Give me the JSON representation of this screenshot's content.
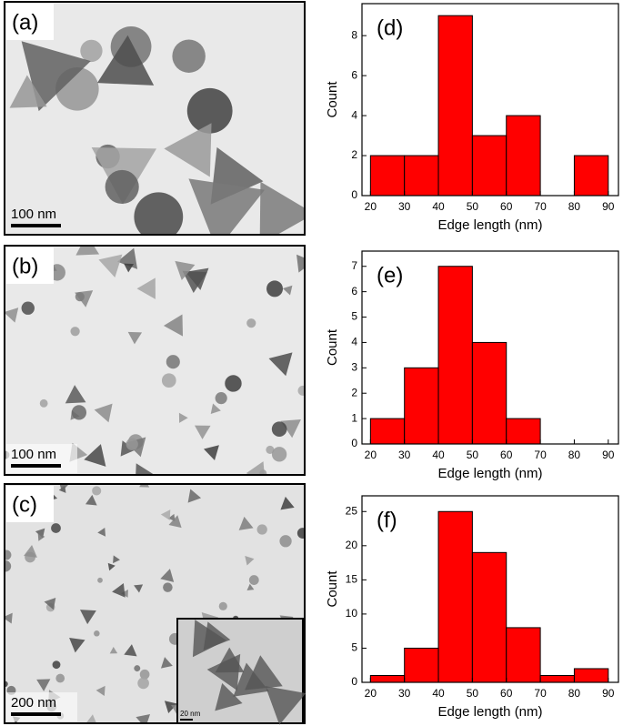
{
  "images": [
    {
      "label": "(a)",
      "scale_bar": "100 nm"
    },
    {
      "label": "(b)",
      "scale_bar": "100 nm"
    },
    {
      "label": "(c)",
      "scale_bar": "200 nm",
      "inset_scale_bar": "20 nm"
    }
  ],
  "chart_data": [
    {
      "type": "histogram",
      "panel_label": "(d)",
      "xlabel": "Edge length (nm)",
      "ylabel": "Count",
      "bins": [
        20,
        30,
        40,
        50,
        60,
        70,
        80,
        90
      ],
      "values": [
        2,
        2,
        9,
        3,
        4,
        0,
        2
      ],
      "color": "#ff0000",
      "xlim": [
        17.5,
        93
      ],
      "ylim": [
        0,
        9.6
      ],
      "xticks": [
        20,
        30,
        40,
        50,
        60,
        70,
        80,
        90
      ],
      "yticks": [
        0,
        2,
        4,
        6,
        8
      ]
    },
    {
      "type": "histogram",
      "panel_label": "(e)",
      "xlabel": "Edge length (nm)",
      "ylabel": "Count",
      "bins": [
        20,
        30,
        40,
        50,
        60,
        70,
        80,
        90
      ],
      "values": [
        1,
        3,
        7,
        4,
        1,
        0,
        0
      ],
      "color": "#ff0000",
      "xlim": [
        17.5,
        93
      ],
      "ylim": [
        0,
        7.6
      ],
      "xticks": [
        20,
        30,
        40,
        50,
        60,
        70,
        80,
        90
      ],
      "yticks": [
        0,
        1,
        2,
        3,
        4,
        5,
        6,
        7
      ]
    },
    {
      "type": "histogram",
      "panel_label": "(f)",
      "xlabel": "Edge length (nm)",
      "ylabel": "Count",
      "bins": [
        20,
        30,
        40,
        50,
        60,
        70,
        80,
        90
      ],
      "values": [
        1,
        5,
        25,
        19,
        8,
        1,
        2
      ],
      "color": "#ff0000",
      "xlim": [
        17.5,
        93
      ],
      "ylim": [
        0,
        27.3
      ],
      "xticks": [
        20,
        30,
        40,
        50,
        60,
        70,
        80,
        90
      ],
      "yticks": [
        0,
        5,
        10,
        15,
        20,
        25
      ]
    }
  ]
}
